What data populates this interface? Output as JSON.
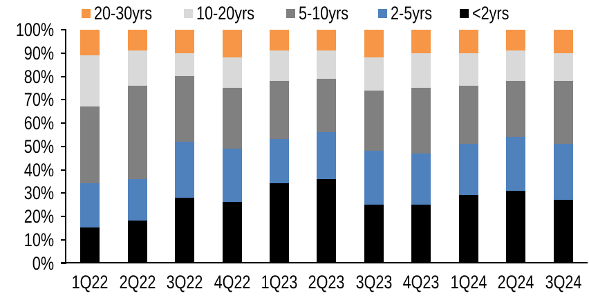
{
  "chart_data": {
    "type": "bar",
    "stacked": true,
    "percent": true,
    "title": "",
    "xlabel": "",
    "ylabel": "",
    "grid": false,
    "legend_position": "top",
    "ylim": [
      0,
      100
    ],
    "y_ticks": [
      "0%",
      "10%",
      "20%",
      "30%",
      "40%",
      "50%",
      "60%",
      "70%",
      "80%",
      "90%",
      "100%"
    ],
    "categories": [
      "1Q22",
      "2Q22",
      "3Q22",
      "4Q22",
      "1Q23",
      "2Q23",
      "3Q23",
      "4Q23",
      "1Q24",
      "2Q24",
      "3Q24"
    ],
    "series": [
      {
        "name": "<2yrs",
        "color": "#000000",
        "values": [
          15,
          18,
          28,
          26,
          34,
          36,
          25,
          25,
          29,
          31,
          27
        ]
      },
      {
        "name": "2-5yrs",
        "color": "#4F81BD",
        "values": [
          19,
          18,
          24,
          23,
          19,
          20,
          23,
          22,
          22,
          23,
          24
        ]
      },
      {
        "name": "5-10yrs",
        "color": "#808080",
        "values": [
          33,
          40,
          28,
          26,
          25,
          23,
          26,
          28,
          25,
          24,
          27
        ]
      },
      {
        "name": "10-20yrs",
        "color": "#D9D9D9",
        "values": [
          22,
          15,
          10,
          13,
          13,
          12,
          14,
          15,
          14,
          13,
          12
        ]
      },
      {
        "name": "20-30yrs",
        "color": "#F79646",
        "values": [
          11,
          9,
          10,
          12,
          9,
          9,
          12,
          10,
          10,
          9,
          10
        ]
      }
    ],
    "legend_order": [
      "20-30yrs",
      "10-20yrs",
      "5-10yrs",
      "2-5yrs",
      "<2yrs"
    ],
    "axis_color": "#000000",
    "background_color": "#FFFFFF"
  }
}
